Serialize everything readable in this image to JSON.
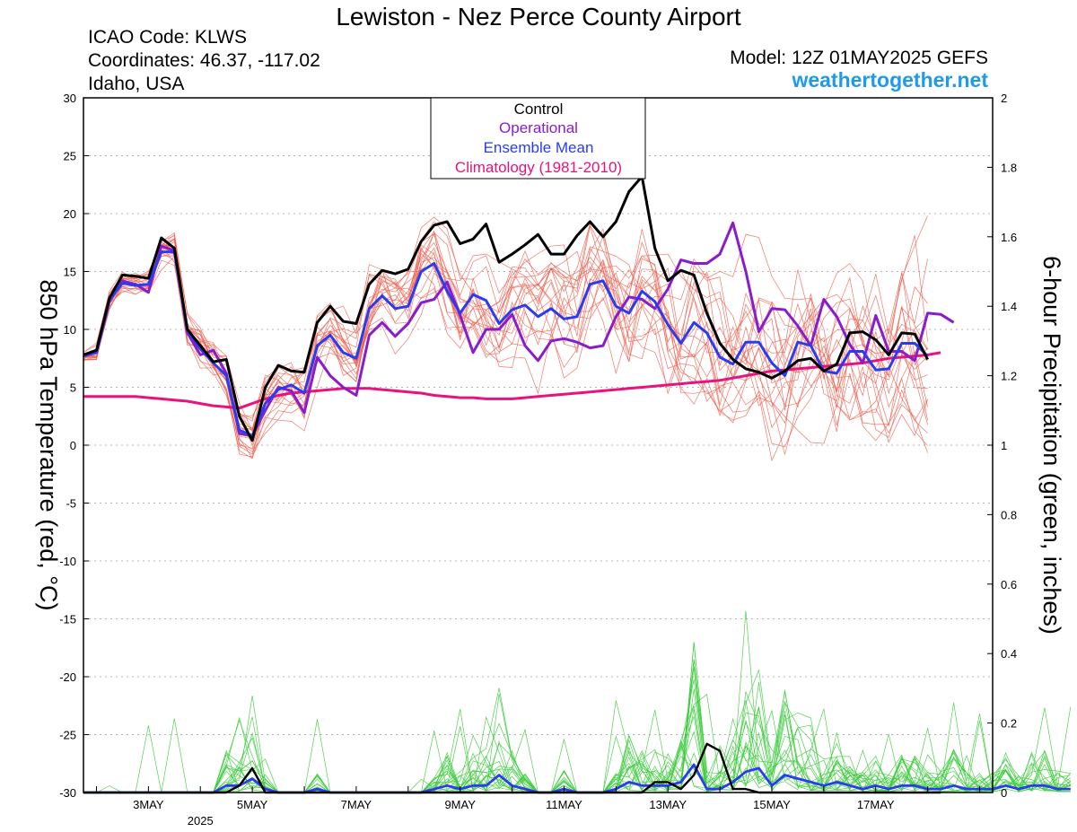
{
  "header": {
    "title": "Lewiston - Nez Perce County Airport",
    "icao": "ICAO Code: KLWS",
    "coords": "Coordinates: 46.37, -117.02",
    "region": "Idaho, USA",
    "model": "Model: 12Z 01MAY2025 GEFS",
    "brand": "weathertogether.net"
  },
  "legend": {
    "items": [
      {
        "label": "Control",
        "color": "#000000"
      },
      {
        "label": "Operational",
        "color": "#8a1ccc"
      },
      {
        "label": "Ensemble Mean",
        "color": "#2a3cf0"
      },
      {
        "label": "Climatology (1981-2010)",
        "color": "#e8137c"
      }
    ],
    "position": "top-center"
  },
  "chart_data": {
    "type": "line",
    "ylabel_left": "850 hPa Temperature (red, °C)",
    "ylabel_right": "6-hour Precipitation (green, inches)",
    "ylim_left": [
      -30,
      30
    ],
    "ylim_right": [
      0,
      2
    ],
    "y_ticks_left": [
      "30",
      "25",
      "20",
      "15",
      "10",
      "5",
      "0",
      "-5",
      "-10",
      "-15",
      "-20",
      "-25",
      "-30"
    ],
    "y_ticks_right": [
      "2",
      "1.8",
      "1.6",
      "1.4",
      "1.2",
      "1",
      "0.8",
      "0.6",
      "0.4",
      "0.2",
      "0"
    ],
    "x_tick_labels": [
      "3MAY",
      "5MAY",
      "7MAY",
      "9MAY",
      "11MAY",
      "13MAY",
      "15MAY",
      "17MAY"
    ],
    "x_year_label": "2025",
    "x_start": "2025-05-01 18Z",
    "x_step": "6 hours",
    "grid": true,
    "colors": {
      "members_temp": "#f06050",
      "members_precip": "#3ecc3e",
      "control": "#000000",
      "operational": "#8a1ccc",
      "mean": "#2a3cf0",
      "climatology": "#e8137c"
    },
    "series": [
      {
        "name": "Control",
        "axis": "left",
        "values": [
          7.8,
          8.2,
          12.7,
          14.7,
          14.6,
          14.4,
          17.9,
          17.0,
          10.0,
          8.6,
          7.2,
          7.4,
          2.5,
          0.4,
          5.0,
          6.9,
          6.4,
          6.3,
          10.6,
          12.0,
          10.7,
          10.5,
          13.9,
          15.1,
          14.8,
          15.2,
          17.6,
          19.0,
          19.3,
          17.4,
          17.8,
          19.1,
          15.8,
          16.5,
          17.3,
          18.2,
          16.5,
          16.5,
          18.1,
          19.3,
          18.0,
          19.3,
          21.9,
          23.2,
          17.0,
          14.2,
          15.1,
          14.7,
          11.4,
          8.8,
          7.4,
          6.6,
          6.3,
          5.8,
          6.4,
          7.3,
          7.5,
          6.4,
          7.0,
          9.7,
          9.8,
          9.1,
          7.8,
          9.7,
          9.6,
          7.4
        ]
      },
      {
        "name": "Operational",
        "axis": "left",
        "values": [
          7.8,
          8.0,
          12.4,
          14.2,
          13.9,
          13.2,
          17.2,
          16.8,
          9.7,
          7.8,
          8.2,
          6.2,
          1.0,
          0.8,
          3.0,
          5.0,
          4.7,
          2.8,
          7.6,
          6.0,
          5.0,
          4.3,
          9.5,
          10.6,
          9.4,
          10.5,
          12.3,
          12.6,
          14.1,
          11.2,
          8.0,
          10.0,
          10.0,
          11.3,
          8.6,
          7.3,
          9.0,
          9.2,
          8.9,
          8.4,
          8.6,
          11.1,
          12.8,
          12.6,
          11.8,
          13.5,
          16.0,
          15.7,
          15.7,
          16.5,
          19.2,
          15.0,
          9.8,
          11.8,
          11.7,
          10.3,
          8.6,
          12.6,
          11.1,
          8.7,
          7.1,
          11.2,
          8.1,
          8.1,
          7.3,
          11.4,
          11.3,
          10.6
        ]
      },
      {
        "name": "Ensemble Mean",
        "axis": "left",
        "values": [
          7.7,
          8.0,
          12.5,
          14.0,
          13.8,
          13.9,
          16.7,
          16.7,
          9.9,
          8.3,
          7.1,
          6.0,
          1.3,
          0.8,
          3.6,
          4.8,
          5.2,
          4.5,
          8.6,
          9.5,
          8.0,
          7.5,
          11.8,
          12.9,
          11.8,
          12.0,
          15.0,
          15.7,
          13.3,
          11.4,
          13.0,
          12.5,
          10.5,
          11.7,
          12.1,
          11.1,
          11.8,
          10.9,
          11.1,
          13.9,
          14.2,
          12.0,
          11.4,
          13.3,
          12.4,
          10.4,
          8.8,
          10.6,
          9.7,
          7.6,
          7.0,
          8.9,
          8.9,
          7.1,
          6.0,
          8.9,
          8.6,
          6.4,
          6.2,
          8.1,
          8.1,
          6.5,
          6.6,
          8.8,
          8.8,
          7.7
        ]
      },
      {
        "name": "Climatology (1981-2010)",
        "axis": "left",
        "values": [
          4.2,
          4.2,
          4.2,
          4.2,
          4.2,
          4.1,
          4.0,
          3.9,
          3.8,
          3.6,
          3.4,
          3.3,
          3.2,
          3.6,
          4.0,
          4.3,
          4.5,
          4.6,
          4.7,
          4.8,
          4.9,
          4.9,
          4.9,
          4.8,
          4.7,
          4.6,
          4.5,
          4.3,
          4.2,
          4.1,
          4.1,
          4.0,
          4.0,
          4.0,
          4.1,
          4.2,
          4.3,
          4.4,
          4.5,
          4.6,
          4.7,
          4.8,
          4.9,
          5.0,
          5.1,
          5.2,
          5.3,
          5.4,
          5.5,
          5.6,
          5.8,
          6.0,
          6.2,
          6.4,
          6.5,
          6.6,
          6.7,
          6.8,
          6.9,
          7.0,
          7.1,
          7.3,
          7.5,
          7.6,
          7.7,
          7.8,
          8.0
        ]
      },
      {
        "name": "Control Precip",
        "axis": "right",
        "values": [
          0,
          0,
          0,
          0,
          0,
          0,
          0,
          0,
          0,
          0,
          0,
          0,
          0.02,
          0.07,
          0,
          0,
          0,
          0,
          0,
          0,
          0,
          0,
          0,
          0,
          0,
          0,
          0,
          0,
          0,
          0,
          0,
          0,
          0,
          0,
          0,
          0,
          0,
          0,
          0,
          0,
          0,
          0,
          0,
          0,
          0.03,
          0.03,
          0.01,
          0.05,
          0.14,
          0.12,
          0.01,
          0.01,
          0,
          0,
          0,
          0,
          0,
          0,
          0,
          0,
          0,
          0,
          0,
          0,
          0,
          0,
          0
        ]
      },
      {
        "name": "Mean Precip",
        "axis": "right",
        "values": [
          0,
          0,
          0,
          0,
          0,
          0,
          0,
          0,
          0,
          0,
          0,
          0.02,
          0.02,
          0.04,
          0.01,
          0,
          0,
          0,
          0.01,
          0,
          0,
          0,
          0,
          0,
          0,
          0,
          0,
          0.01,
          0.02,
          0.01,
          0.02,
          0.02,
          0.05,
          0.02,
          0.01,
          0,
          0,
          0.01,
          0,
          0,
          0,
          0.01,
          0.03,
          0.02,
          0.02,
          0.02,
          0.03,
          0.08,
          0.01,
          0.01,
          0.03,
          0.06,
          0.07,
          0.02,
          0.05,
          0.04,
          0.03,
          0.02,
          0.03,
          0.02,
          0.01,
          0.02,
          0.01,
          0.02,
          0.02,
          0.01,
          0.01,
          0.02,
          0.01,
          0.01,
          0.01,
          0.02,
          0.01,
          0.02,
          0.02,
          0.01,
          0.01
        ]
      }
    ]
  }
}
